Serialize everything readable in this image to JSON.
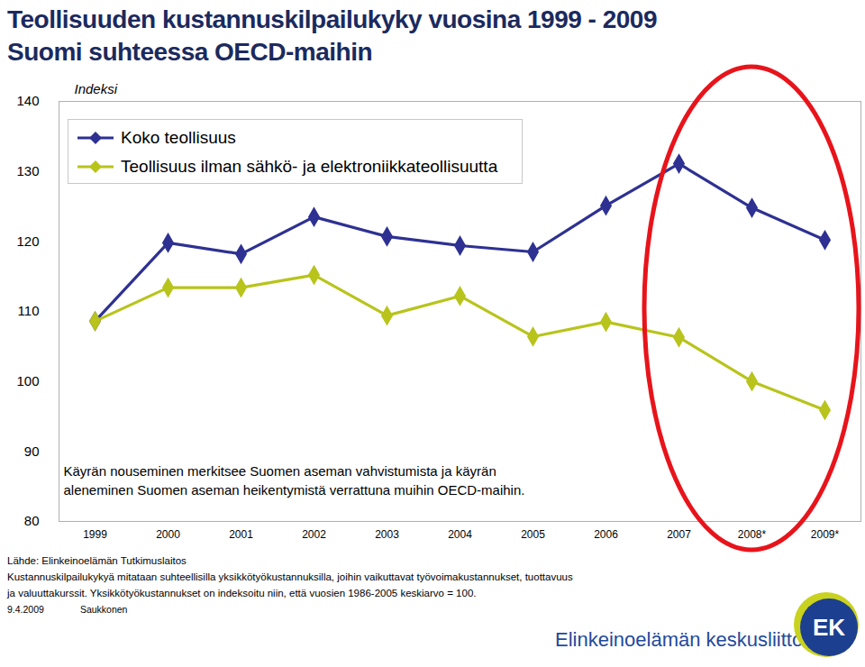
{
  "chart_data": {
    "type": "line",
    "title": "Teollisuuden kustannuskilpailukyky vuosina 1999 - 2009",
    "subtitle": "Suomi suhteessa OECD-maihin",
    "y_label": "Indeksi",
    "categories": [
      "1999",
      "2000",
      "2001",
      "2002",
      "2003",
      "2004",
      "2005",
      "2006",
      "2007",
      "2008*",
      "2009*"
    ],
    "series": [
      {
        "name": "Koko teollisuus",
        "color": "#2e3192",
        "marker": "diamond",
        "values": [
          108.6,
          119.8,
          118.2,
          123.5,
          120.7,
          119.4,
          118.5,
          125.1,
          131.1,
          124.8,
          120.2
        ]
      },
      {
        "name": "Teollisuus ilman sähkö- ja elektroniikkateollisuutta",
        "color": "#b8c41c",
        "marker": "diamond",
        "values": [
          108.6,
          113.4,
          113.4,
          115.2,
          109.4,
          112.2,
          106.4,
          108.5,
          106.3,
          100.0,
          95.9
        ]
      }
    ],
    "ylim": [
      80,
      140
    ],
    "yticks": [
      80,
      90,
      100,
      110,
      120,
      130,
      140
    ],
    "grid": false,
    "legend": "top-left",
    "annotations": [
      "Käyrän nouseminen merkitsee Suomen aseman vahvistumista ja käyrän",
      "aleneminen Suomen aseman heikentymistä verrattuna muihin OECD-maihin."
    ],
    "source": "Lähde: Elinkeinoelämän Tutkimuslaitos",
    "notes": [
      "Kustannuskilpailukykyä mitataan suhteellisilla yksikkötyökustannuksilla, joihin vaikuttavat työvoimakustannukset, tuottavuus",
      "ja valuuttakurssit. Yksikkötyökustannukset on indeksoitu niin, että vuosien 1986-2005 keskiarvo = 100."
    ],
    "date": "9.4.2009",
    "author": "Saukkonen",
    "logo_text": "Elinkeinoelämän keskusliitto",
    "logo_mark": "EK"
  }
}
